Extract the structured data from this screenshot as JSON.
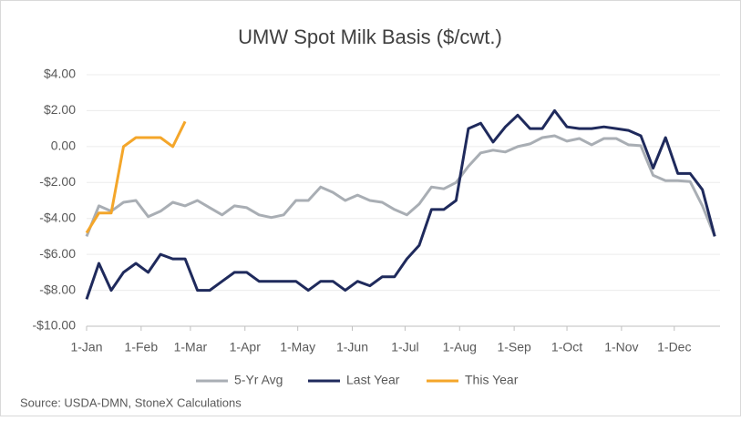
{
  "chart_data": {
    "type": "line",
    "title": "UMW Spot Milk Basis ($/cwt.)",
    "source": "Source: USDA-DMN, StoneX Calculations",
    "x": [
      0,
      7,
      14,
      21,
      28,
      35,
      42,
      49,
      56,
      63,
      70,
      77,
      84,
      91,
      98,
      105,
      112,
      119,
      126,
      133,
      140,
      147,
      154,
      161,
      168,
      175,
      182,
      189,
      196,
      203,
      210,
      217,
      224,
      231,
      238,
      245,
      252,
      259,
      266,
      273,
      280,
      287,
      294,
      301,
      308,
      315,
      322,
      329,
      336,
      343,
      350,
      357
    ],
    "xlim": [
      0,
      360
    ],
    "xticks": [
      {
        "value": 0,
        "label": "1-Jan"
      },
      {
        "value": 31,
        "label": "1-Feb"
      },
      {
        "value": 59,
        "label": "1-Mar"
      },
      {
        "value": 90,
        "label": "1-Apr"
      },
      {
        "value": 120,
        "label": "1-May"
      },
      {
        "value": 151,
        "label": "1-Jun"
      },
      {
        "value": 181,
        "label": "1-Jul"
      },
      {
        "value": 212,
        "label": "1-Aug"
      },
      {
        "value": 243,
        "label": "1-Sep"
      },
      {
        "value": 273,
        "label": "1-Oct"
      },
      {
        "value": 304,
        "label": "1-Nov"
      },
      {
        "value": 334,
        "label": "1-Dec"
      }
    ],
    "ylim": [
      -10,
      4
    ],
    "yticks": [
      {
        "value": 4,
        "label": "$4.00"
      },
      {
        "value": 2,
        "label": "$2.00"
      },
      {
        "value": 0,
        "label": "0.00"
      },
      {
        "value": -2,
        "label": "-$2.00"
      },
      {
        "value": -4,
        "label": "-$4.00"
      },
      {
        "value": -6,
        "label": "-$6.00"
      },
      {
        "value": -8,
        "label": "-$8.00"
      },
      {
        "value": -10,
        "label": "-$10.00"
      }
    ],
    "grid": true,
    "legend": "bottom",
    "series": [
      {
        "name": "5-Yr Avg",
        "color": "#a9aeb4",
        "values": [
          -5.0,
          -3.3,
          -3.6,
          -3.1,
          -3.0,
          -3.9,
          -3.6,
          -3.1,
          -3.3,
          -3.0,
          -3.4,
          -3.8,
          -3.3,
          -3.4,
          -3.8,
          -3.95,
          -3.8,
          -3.0,
          -3.0,
          -2.25,
          -2.55,
          -3.0,
          -2.7,
          -3.0,
          -3.1,
          -3.5,
          -3.8,
          -3.2,
          -2.25,
          -2.35,
          -2.0,
          -1.1,
          -0.35,
          -0.2,
          -0.3,
          0.0,
          0.15,
          0.5,
          0.6,
          0.3,
          0.45,
          0.1,
          0.45,
          0.45,
          0.1,
          0.05,
          -1.6,
          -1.9,
          -1.9,
          -1.95,
          -3.3,
          -5.0
        ]
      },
      {
        "name": "Last Year",
        "color": "#1f2a5c",
        "values": [
          -8.5,
          -6.5,
          -8.0,
          -7.0,
          -6.5,
          -7.0,
          -6.0,
          -6.25,
          -6.25,
          -8.0,
          -8.0,
          -7.5,
          -7.0,
          -7.0,
          -7.5,
          -7.5,
          -7.5,
          -7.5,
          -8.0,
          -7.5,
          -7.5,
          -8.0,
          -7.5,
          -7.75,
          -7.25,
          -7.25,
          -6.25,
          -5.5,
          -3.5,
          -3.5,
          -3.0,
          1.0,
          1.3,
          0.25,
          1.1,
          1.75,
          1.0,
          1.0,
          2.0,
          1.1,
          1.0,
          1.0,
          1.1,
          1.0,
          0.9,
          0.6,
          -1.2,
          0.5,
          -1.5,
          -1.5,
          -2.4,
          -5.0
        ]
      },
      {
        "name": "This Year",
        "color": "#f4a62a",
        "values": [
          -4.8,
          -3.7,
          -3.7,
          0.0,
          0.5,
          0.5,
          0.5,
          0.0,
          1.4,
          null,
          null,
          null,
          null,
          null,
          null,
          null,
          null,
          null,
          null,
          null,
          null,
          null,
          null,
          null,
          null,
          null,
          null,
          null,
          null,
          null,
          null,
          null,
          null,
          null,
          null,
          null,
          null,
          null,
          null,
          null,
          null,
          null,
          null,
          null,
          null,
          null,
          null,
          null,
          null,
          null,
          null,
          null
        ]
      }
    ]
  }
}
